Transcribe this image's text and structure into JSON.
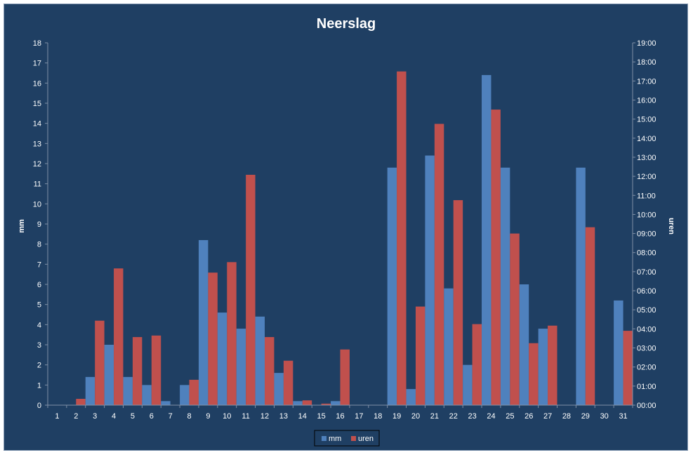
{
  "chart_data": {
    "type": "bar",
    "title": "Neerslag",
    "ylabel": "mm",
    "y2label": "uren",
    "categories": [
      "1",
      "2",
      "3",
      "4",
      "5",
      "6",
      "7",
      "8",
      "9",
      "10",
      "11",
      "12",
      "13",
      "14",
      "15",
      "16",
      "17",
      "18",
      "19",
      "20",
      "21",
      "22",
      "23",
      "24",
      "25",
      "26",
      "27",
      "28",
      "29",
      "30",
      "31"
    ],
    "ylim": [
      0,
      18
    ],
    "y2lim_hours": [
      0,
      19
    ],
    "y_ticks": [
      "0",
      "1",
      "2",
      "3",
      "4",
      "5",
      "6",
      "7",
      "8",
      "9",
      "10",
      "11",
      "12",
      "13",
      "14",
      "15",
      "16",
      "17",
      "18"
    ],
    "y2_ticks": [
      "00:00",
      "01:00",
      "02:00",
      "03:00",
      "04:00",
      "05:00",
      "06:00",
      "07:00",
      "08:00",
      "09:00",
      "10:00",
      "11:00",
      "12:00",
      "13:00",
      "14:00",
      "15:00",
      "16:00",
      "17:00",
      "18:00",
      "19:00"
    ],
    "series": [
      {
        "name": "mm",
        "axis": "left",
        "color": "#4f81bd",
        "values": [
          0,
          0,
          1.4,
          3.0,
          1.4,
          1.0,
          0.2,
          1.0,
          8.2,
          4.6,
          3.8,
          4.4,
          1.6,
          0.2,
          0,
          0.2,
          0,
          0,
          11.8,
          0.8,
          12.4,
          5.8,
          2.0,
          16.4,
          11.8,
          6.0,
          3.8,
          0,
          11.8,
          0,
          5.2
        ]
      },
      {
        "name": "uren",
        "axis": "right",
        "color": "#c0504d",
        "values": [
          0,
          0.33,
          4.43,
          7.17,
          3.57,
          3.65,
          0,
          1.33,
          6.95,
          7.5,
          12.08,
          3.57,
          2.33,
          0.25,
          0.08,
          2.92,
          0,
          0,
          17.5,
          5.17,
          14.75,
          10.75,
          4.25,
          15.5,
          9.0,
          3.25,
          4.17,
          0,
          9.33,
          0,
          3.9
        ]
      }
    ],
    "legend_position": "bottom"
  }
}
